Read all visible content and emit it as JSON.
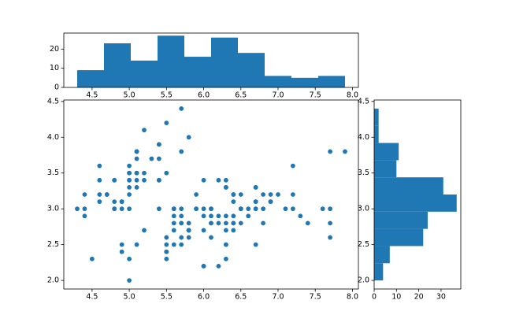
{
  "chart_data": [
    {
      "type": "scatter",
      "color": "#1f77b4",
      "x": [
        5.1,
        4.9,
        4.7,
        4.6,
        5.0,
        5.4,
        4.6,
        5.0,
        4.4,
        4.9,
        5.4,
        4.8,
        4.8,
        4.3,
        5.8,
        5.7,
        5.4,
        5.1,
        5.7,
        5.1,
        5.4,
        5.1,
        4.6,
        5.1,
        4.8,
        5.0,
        5.0,
        5.2,
        5.2,
        4.7,
        4.8,
        5.4,
        5.2,
        5.5,
        4.9,
        5.0,
        5.5,
        4.9,
        4.4,
        5.1,
        5.0,
        4.5,
        4.4,
        5.0,
        5.1,
        4.8,
        5.1,
        4.6,
        5.3,
        5.0,
        7.0,
        6.4,
        6.9,
        5.5,
        6.5,
        5.7,
        6.3,
        4.9,
        6.6,
        5.2,
        5.0,
        5.9,
        6.0,
        6.1,
        5.6,
        6.7,
        5.6,
        5.8,
        6.2,
        5.6,
        5.9,
        6.1,
        6.3,
        6.1,
        6.4,
        6.6,
        6.8,
        6.7,
        6.0,
        5.7,
        5.5,
        5.5,
        5.8,
        6.0,
        5.4,
        6.0,
        6.7,
        6.3,
        5.6,
        5.5,
        5.5,
        6.1,
        5.8,
        5.0,
        5.6,
        5.7,
        5.7,
        6.2,
        5.1,
        5.7,
        6.3,
        5.8,
        7.1,
        6.3,
        6.5,
        7.6,
        4.9,
        7.3,
        6.7,
        7.2,
        6.5,
        6.4,
        6.8,
        5.7,
        5.8,
        6.4,
        6.5,
        7.7,
        7.7,
        6.0,
        6.9,
        5.6,
        7.7,
        6.3,
        6.7,
        7.2,
        6.2,
        6.1,
        6.4,
        7.2,
        7.4,
        7.9,
        6.4,
        6.3,
        6.1,
        7.7,
        6.3,
        6.4,
        6.0,
        6.9,
        6.7,
        6.9,
        5.8,
        6.8,
        6.7,
        6.7,
        6.3,
        6.5,
        6.2,
        5.9
      ],
      "values": [
        3.5,
        3.0,
        3.2,
        3.1,
        3.6,
        3.9,
        3.4,
        3.4,
        2.9,
        3.1,
        3.7,
        3.4,
        3.0,
        3.0,
        4.0,
        4.4,
        3.9,
        3.5,
        3.8,
        3.8,
        3.4,
        3.7,
        3.6,
        3.3,
        3.4,
        3.0,
        3.4,
        3.5,
        3.4,
        3.2,
        3.1,
        3.4,
        4.1,
        4.2,
        3.1,
        3.2,
        3.5,
        3.1,
        3.0,
        3.4,
        3.5,
        2.3,
        3.2,
        3.5,
        3.8,
        3.0,
        3.8,
        3.2,
        3.7,
        3.3,
        3.2,
        3.2,
        3.1,
        2.3,
        2.8,
        2.8,
        3.3,
        2.4,
        2.9,
        2.7,
        2.0,
        3.0,
        2.2,
        2.9,
        2.9,
        3.1,
        3.0,
        2.7,
        2.2,
        2.5,
        3.2,
        2.8,
        2.5,
        2.8,
        2.9,
        3.0,
        2.8,
        3.0,
        2.9,
        2.6,
        2.4,
        2.4,
        2.7,
        2.7,
        3.0,
        3.4,
        3.1,
        2.3,
        3.0,
        2.5,
        2.6,
        3.0,
        2.6,
        2.3,
        2.7,
        3.0,
        2.9,
        2.9,
        2.5,
        2.8,
        3.3,
        2.7,
        3.0,
        2.9,
        3.0,
        3.0,
        2.5,
        2.9,
        2.5,
        3.6,
        3.2,
        2.7,
        3.0,
        2.5,
        2.8,
        3.2,
        3.0,
        3.8,
        2.6,
        2.2,
        3.2,
        2.8,
        2.8,
        2.7,
        3.3,
        3.2,
        2.8,
        3.0,
        2.8,
        3.0,
        2.8,
        3.8,
        2.8,
        2.8,
        2.6,
        3.0,
        3.4,
        3.1,
        3.0,
        3.1,
        3.1,
        3.1,
        2.7,
        3.2,
        3.3,
        3.0,
        2.5,
        3.0,
        3.4,
        3.0
      ],
      "xlim": [
        4.12,
        8.08
      ],
      "xticks": [
        4.5,
        {
          "value": 5.0,
          "label": "5.0"
        },
        5.5,
        {
          "value": 6.0,
          "label": "6.0"
        },
        6.5,
        {
          "value": 7.0,
          "label": "7.0"
        },
        7.5,
        {
          "value": 8.0,
          "label": "8.0"
        }
      ],
      "ylim": [
        1.88,
        4.52
      ],
      "yticks": [
        {
          "value": 2.0,
          "label": "2.0"
        },
        2.5,
        {
          "value": 3.0,
          "label": "3.0"
        },
        3.5,
        {
          "value": 4.0,
          "label": "4.0"
        },
        4.5
      ]
    },
    {
      "type": "histogram",
      "orientation": "vertical",
      "color": "#1f77b4",
      "bins": [
        4.3,
        4.66,
        5.02,
        5.38,
        5.74,
        6.1,
        6.46,
        6.82,
        7.18,
        7.54,
        7.9
      ],
      "values": [
        9,
        23,
        14,
        27,
        16,
        26,
        18,
        6,
        5,
        6
      ],
      "xlim": [
        4.12,
        8.08
      ],
      "xticks": [
        4.5,
        {
          "value": 5.0,
          "label": "5.0"
        },
        5.5,
        {
          "value": 6.0,
          "label": "6.0"
        },
        6.5,
        {
          "value": 7.0,
          "label": "7.0"
        },
        7.5,
        {
          "value": 8.0,
          "label": "8.0"
        }
      ],
      "ylim": [
        0,
        28.35
      ],
      "yticks": [
        0,
        10,
        20
      ]
    },
    {
      "type": "histogram",
      "orientation": "horizontal",
      "color": "#1f77b4",
      "bins": [
        2.0,
        2.24,
        2.48,
        2.72,
        2.96,
        3.2,
        3.44,
        3.68,
        3.92,
        4.16,
        4.4
      ],
      "values": [
        4,
        7,
        22,
        24,
        37,
        31,
        10,
        11,
        2,
        2
      ],
      "xlim": [
        0,
        38.85
      ],
      "xticks": [
        0,
        10,
        20,
        30
      ],
      "ylim": [
        1.88,
        4.52
      ],
      "yticks": [
        {
          "value": 2.0,
          "label": "2.0"
        },
        2.5,
        {
          "value": 3.0,
          "label": "3.0"
        },
        3.5,
        {
          "value": 4.0,
          "label": "4.0"
        },
        4.5
      ]
    }
  ]
}
